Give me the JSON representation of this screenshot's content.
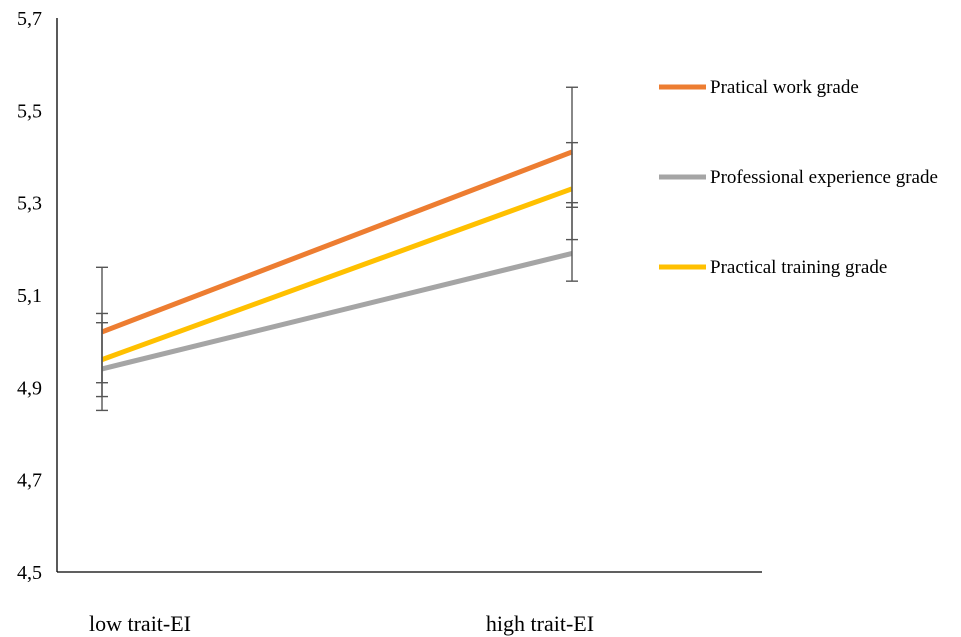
{
  "chart_data": {
    "type": "line",
    "title": "",
    "xlabel": "",
    "ylabel": "",
    "categories": [
      "low trait-EI",
      "high trait-EI"
    ],
    "ylim": [
      4.5,
      5.7
    ],
    "yticks": [
      "4,5",
      "4,7",
      "4,9",
      "5,1",
      "5,3",
      "5,5",
      "5,7"
    ],
    "ytick_values": [
      4.5,
      4.7,
      4.9,
      5.1,
      5.3,
      5.5,
      5.7
    ],
    "grid": false,
    "legend_position": "right",
    "series": [
      {
        "name": "Pratical work grade",
        "color": "#ED7D31",
        "values": [
          5.02,
          5.41
        ],
        "error_low": [
          4.88,
          5.29
        ],
        "error_high": [
          5.16,
          5.55
        ]
      },
      {
        "name": "Professional experience grade",
        "color": "#A5A5A5",
        "values": [
          4.94,
          5.19
        ],
        "error_low": [
          4.85,
          5.13
        ],
        "error_high": [
          5.04,
          5.3
        ]
      },
      {
        "name": "Practical training grade",
        "color": "#FFC000",
        "values": [
          4.96,
          5.33
        ],
        "error_low": [
          4.91,
          5.22
        ],
        "error_high": [
          5.06,
          5.43
        ]
      }
    ]
  }
}
